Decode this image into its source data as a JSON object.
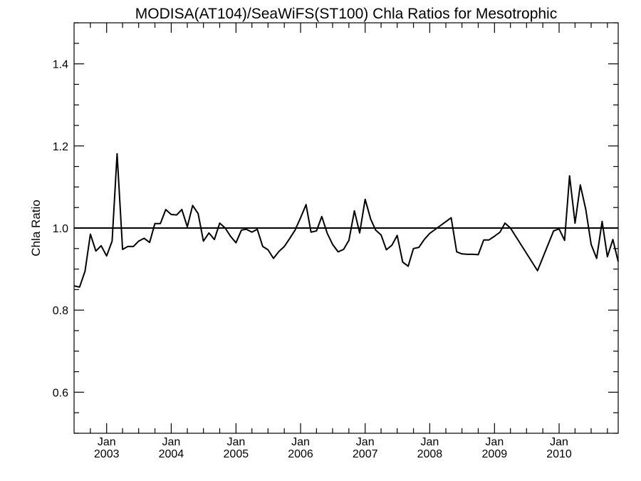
{
  "chart_data": {
    "type": "line",
    "title": "MODISA(AT104)/SeaWiFS(ST100)  Chla Ratios for Mesotrophic",
    "xlabel": "",
    "ylabel": "Chla Ratio",
    "xlim": [
      "2002-07-01",
      "2010-12-01"
    ],
    "ylim": [
      0.5,
      1.5
    ],
    "grid": false,
    "line_color": "#000000",
    "y_major_ticks": [
      0.6,
      0.8,
      1.0,
      1.2,
      1.4
    ],
    "y_tick_labels": [
      "0.6",
      "0.8",
      "1.0",
      "1.2",
      "1.4"
    ],
    "y_minor_ticks": [
      0.5,
      0.55,
      0.65,
      0.7,
      0.75,
      0.85,
      0.9,
      0.95,
      1.05,
      1.1,
      1.15,
      1.25,
      1.3,
      1.35,
      1.45,
      1.5
    ],
    "x_major_ticks": [
      "2003-01-01",
      "2004-01-01",
      "2005-01-01",
      "2006-01-01",
      "2007-01-01",
      "2008-01-01",
      "2009-01-01",
      "2010-01-01"
    ],
    "x_tick_labels": [
      {
        "month": "Jan",
        "year": "2003"
      },
      {
        "month": "Jan",
        "year": "2004"
      },
      {
        "month": "Jan",
        "year": "2005"
      },
      {
        "month": "Jan",
        "year": "2006"
      },
      {
        "month": "Jan",
        "year": "2007"
      },
      {
        "month": "Jan",
        "year": "2008"
      },
      {
        "month": "Jan",
        "year": "2009"
      },
      {
        "month": "Jan",
        "year": "2010"
      }
    ],
    "reference_line": {
      "y": 1.0
    },
    "series": [
      {
        "x": [
          "2002-07-01",
          "2002-08-01",
          "2002-09-01",
          "2002-10-01",
          "2002-11-01",
          "2002-12-01",
          "2003-01-01",
          "2003-02-01",
          "2003-03-01",
          "2003-04-01",
          "2003-05-01",
          "2003-06-01",
          "2003-07-01",
          "2003-08-01",
          "2003-09-01",
          "2003-10-01",
          "2003-11-01",
          "2003-12-01",
          "2004-01-01",
          "2004-02-01",
          "2004-03-01",
          "2004-04-01",
          "2004-05-01",
          "2004-06-01",
          "2004-07-01",
          "2004-08-01",
          "2004-09-01",
          "2004-10-01",
          "2004-11-01",
          "2004-12-01",
          "2005-01-01",
          "2005-02-01",
          "2005-03-01",
          "2005-04-01",
          "2005-05-01",
          "2005-06-01",
          "2005-07-01",
          "2005-08-01",
          "2005-09-01",
          "2005-10-01",
          "2005-11-01",
          "2005-12-01",
          "2006-01-01",
          "2006-02-01",
          "2006-03-01",
          "2006-04-01",
          "2006-05-01",
          "2006-06-01",
          "2006-07-01",
          "2006-08-01",
          "2006-09-01",
          "2006-10-01",
          "2006-11-01",
          "2006-12-01",
          "2007-01-01",
          "2007-02-01",
          "2007-03-01",
          "2007-04-01",
          "2007-05-01",
          "2007-06-01",
          "2007-07-01",
          "2007-08-01",
          "2007-09-01",
          "2007-10-01",
          "2007-11-01",
          "2007-12-01",
          "2008-01-01",
          "2008-05-01",
          "2008-06-01",
          "2008-07-01",
          "2008-08-01",
          "2008-09-01",
          "2008-10-01",
          "2008-11-01",
          "2008-12-01",
          "2009-01-01",
          "2009-02-01",
          "2009-03-01",
          "2009-04-01",
          "2009-09-01",
          "2009-12-01",
          "2010-01-01",
          "2010-02-01",
          "2010-03-01",
          "2010-04-01",
          "2010-05-01",
          "2010-06-01",
          "2010-07-01",
          "2010-08-01",
          "2010-09-01",
          "2010-10-01",
          "2010-11-01",
          "2010-12-01"
        ],
        "values": [
          0.859,
          0.856,
          0.895,
          0.985,
          0.944,
          0.957,
          0.932,
          0.968,
          1.181,
          0.948,
          0.955,
          0.955,
          0.968,
          0.975,
          0.965,
          1.011,
          1.011,
          1.045,
          1.033,
          1.032,
          1.045,
          1.003,
          1.055,
          1.035,
          0.968,
          0.988,
          0.972,
          1.012,
          1.0,
          0.98,
          0.964,
          0.995,
          0.997,
          0.99,
          0.997,
          0.955,
          0.947,
          0.926,
          0.943,
          0.955,
          0.975,
          0.995,
          1.025,
          1.057,
          0.99,
          0.993,
          1.028,
          0.987,
          0.96,
          0.942,
          0.948,
          0.97,
          1.042,
          0.988,
          1.07,
          1.022,
          0.995,
          0.983,
          0.947,
          0.958,
          0.982,
          0.917,
          0.907,
          0.95,
          0.953,
          0.972,
          0.987,
          1.025,
          0.942,
          0.937,
          0.936,
          0.936,
          0.935,
          0.971,
          0.971,
          0.98,
          0.99,
          1.012,
          1.0,
          0.896,
          0.993,
          0.998,
          0.97,
          1.127,
          1.012,
          1.105,
          1.045,
          0.96,
          0.926,
          1.016,
          0.93,
          0.972,
          0.918
        ]
      }
    ]
  }
}
